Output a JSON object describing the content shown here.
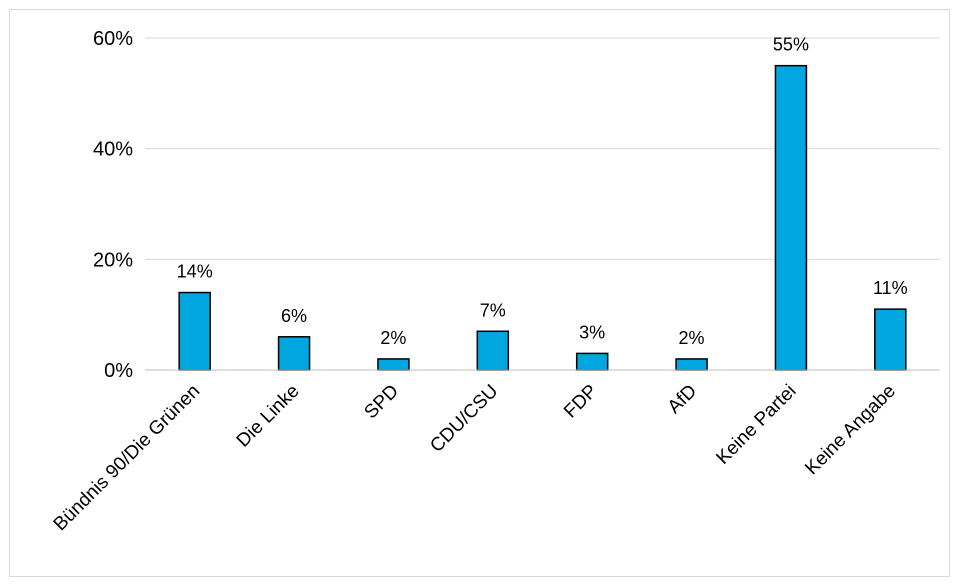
{
  "chart_data": {
    "type": "bar",
    "title": "",
    "xlabel": "",
    "ylabel": "",
    "categories": [
      "Bündnis 90/Die Grünen",
      "Die Linke",
      "SPD",
      "CDU/CSU",
      "FDP",
      "AfD",
      "Keine Partei",
      "Keine Angabe"
    ],
    "values": [
      14,
      6,
      2,
      7,
      3,
      2,
      55,
      11
    ],
    "data_labels": [
      "14%",
      "6%",
      "2%",
      "7%",
      "3%",
      "2%",
      "55%",
      "11%"
    ],
    "ylim": [
      0,
      60
    ],
    "yticks": [
      0,
      20,
      40,
      60
    ],
    "ytick_labels": [
      "0%",
      "20%",
      "40%",
      "60%"
    ],
    "grid": true,
    "legend": "none",
    "bar_color": "#00A6E0"
  }
}
